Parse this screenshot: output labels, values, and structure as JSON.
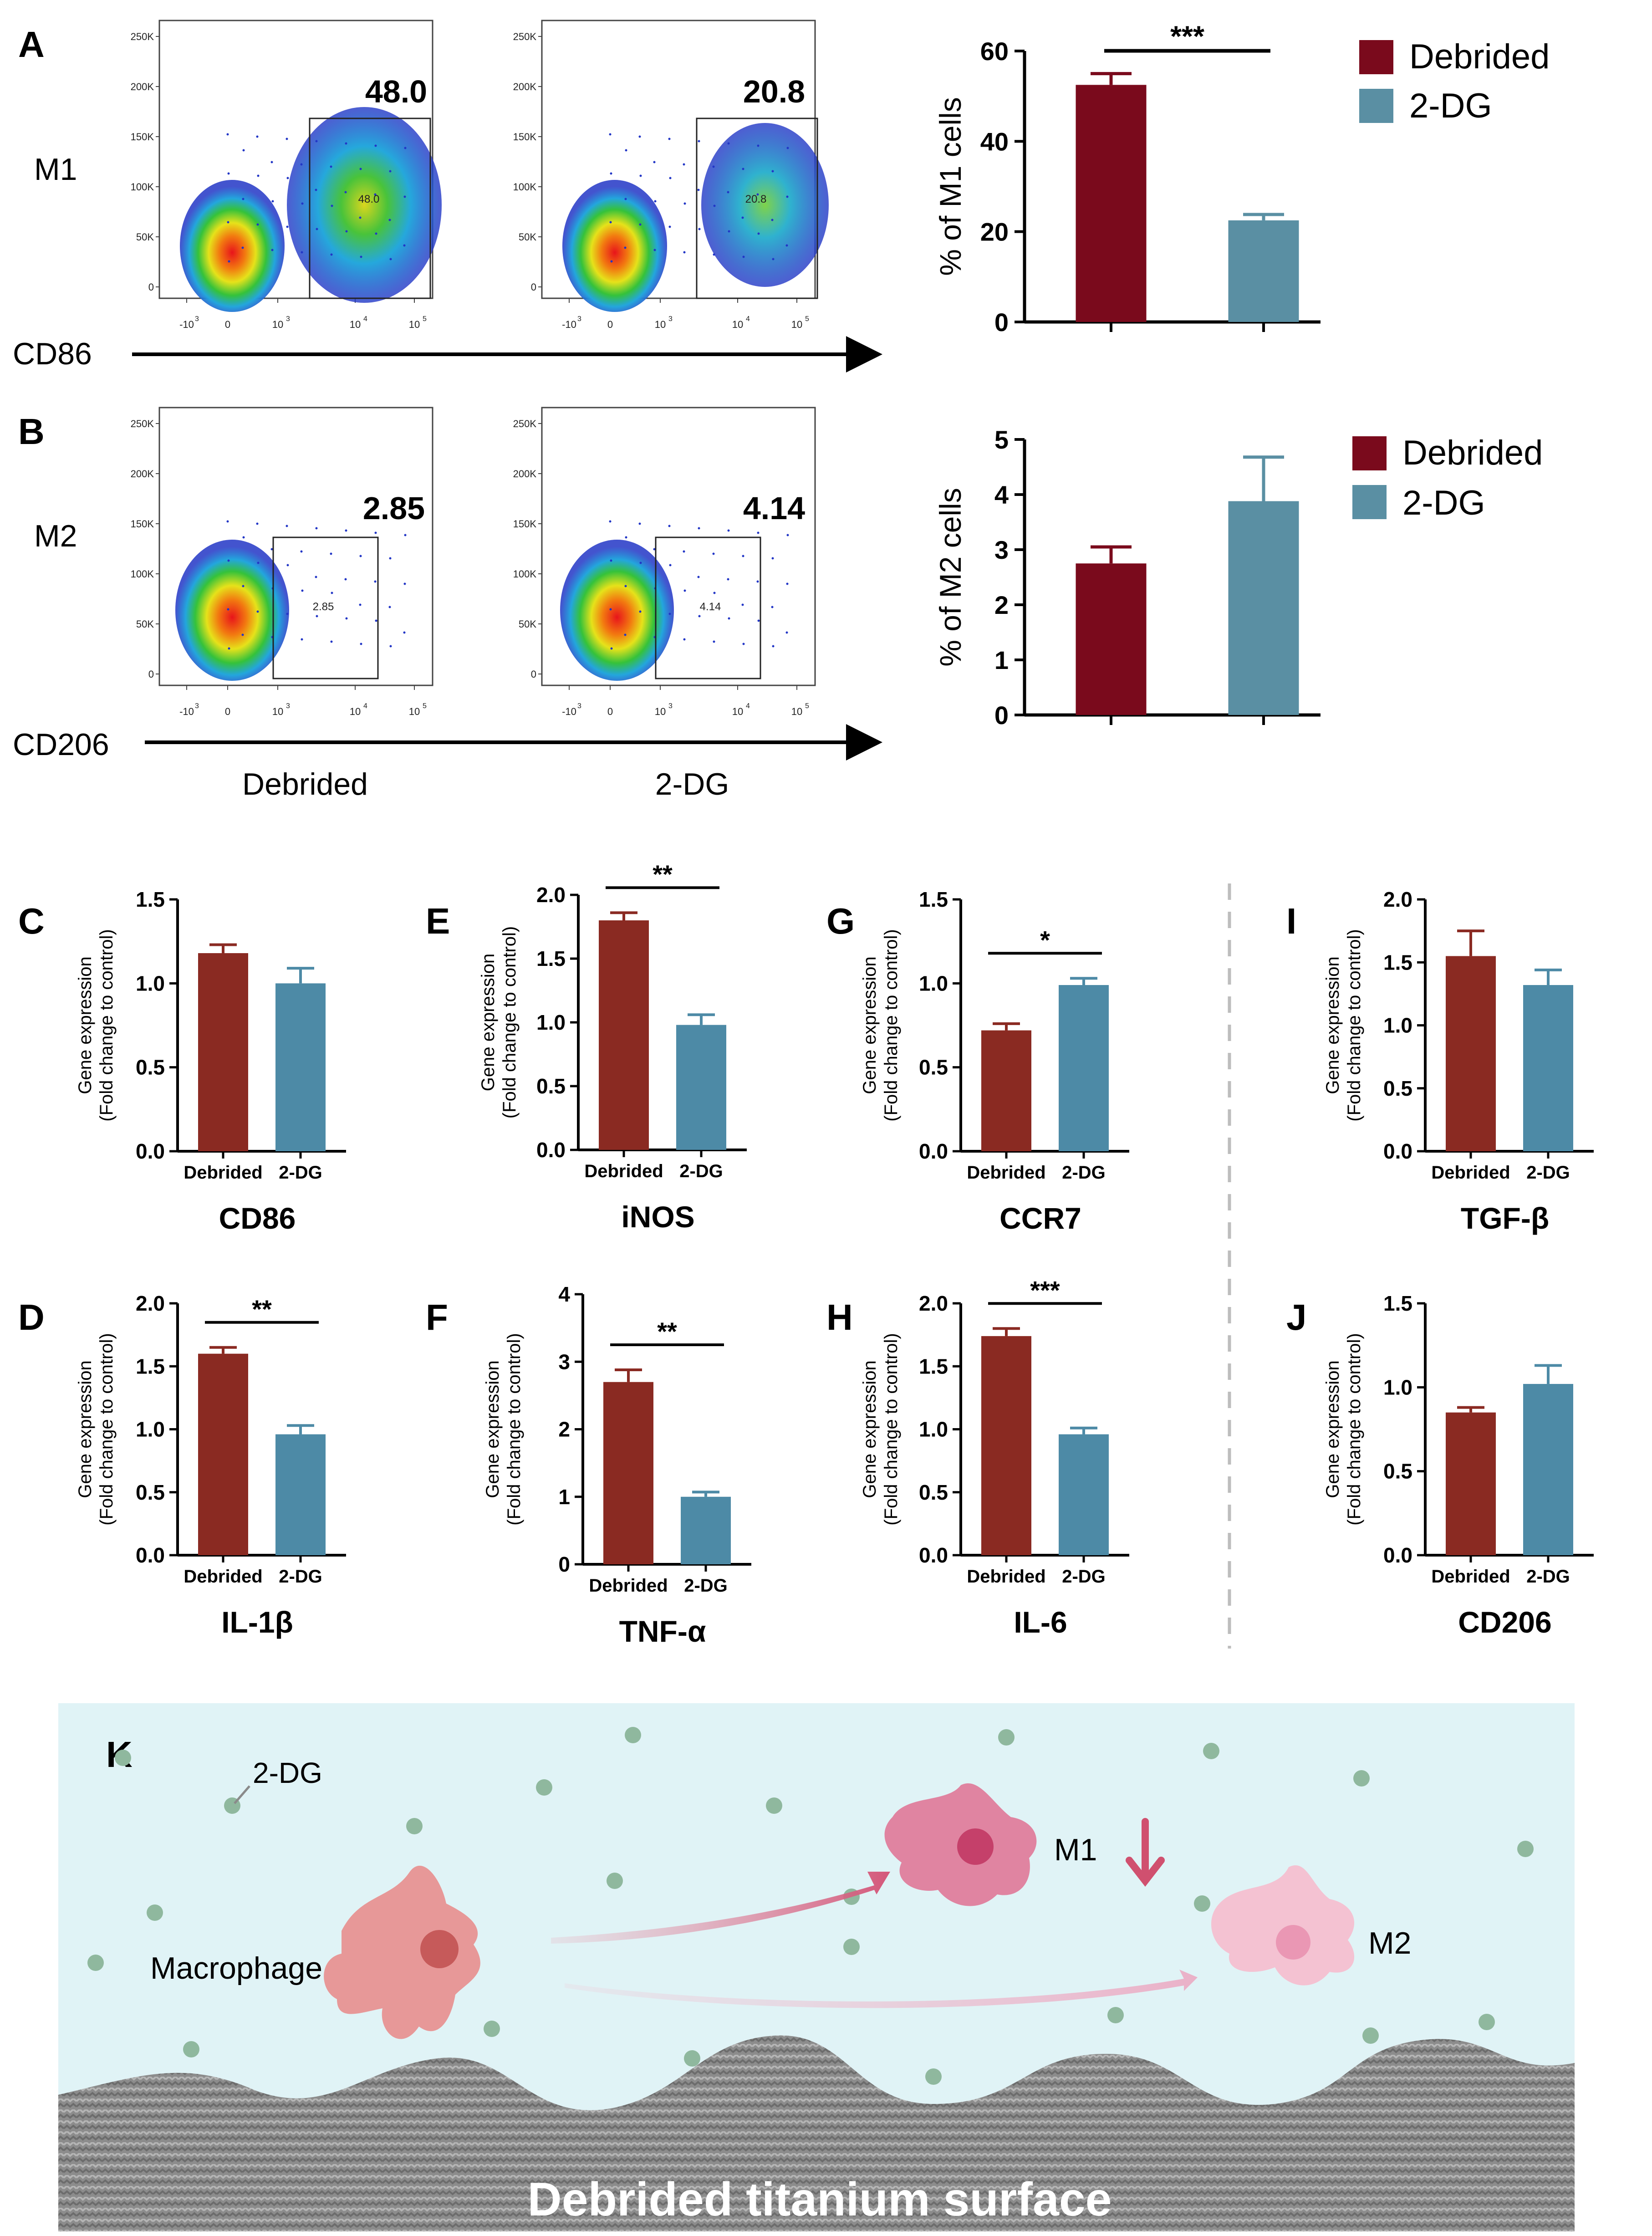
{
  "panel_letters": {
    "A": "A",
    "B": "B",
    "C": "C",
    "D": "D",
    "E": "E",
    "F": "F",
    "G": "G",
    "H": "H",
    "I": "I",
    "J": "J",
    "K": "K"
  },
  "colors": {
    "debrided": "#7a0a1c",
    "dg": "#5a8fa3",
    "debrided_qpcr": "#8a2a22",
    "dg_qpcr": "#4d8aa6",
    "scene_bg": "#e0f3f6"
  },
  "flow": {
    "row_labels": {
      "m1": "M1",
      "m2": "M2"
    },
    "axis_labels": {
      "m1": "CD86",
      "m2": "CD206"
    },
    "group_labels": {
      "debrided": "Debrided",
      "dg": "2-DG"
    },
    "y_ticks": [
      "250K",
      "200K",
      "150K",
      "100K",
      "50K",
      "0"
    ],
    "x_ticks": [
      "-10",
      "0",
      "10",
      "10",
      "10"
    ],
    "x_exps": [
      "3",
      "",
      "3",
      "4",
      "5"
    ],
    "plots": [
      {
        "id": "m1-debrided",
        "gate_value": "48.0",
        "gate_inner": "48.0"
      },
      {
        "id": "m1-2dg",
        "gate_value": "20.8",
        "gate_inner": "20.8"
      },
      {
        "id": "m2-debrided",
        "gate_value": "2.85",
        "gate_inner": "2.85"
      },
      {
        "id": "m2-2dg",
        "gate_value": "4.14",
        "gate_inner": "4.14"
      }
    ]
  },
  "chart_data": [
    {
      "panel": "A",
      "type": "bar",
      "categories": [
        "Debrided",
        "2-DG"
      ],
      "values": [
        52.5,
        22.5
      ],
      "errors": [
        2.5,
        1.3
      ],
      "ylabel": "% of M1 cells",
      "ylim": [
        0,
        60
      ],
      "yticks": [
        0,
        20,
        40,
        60
      ],
      "tick_labels": [
        "0",
        "20",
        "40",
        "60"
      ],
      "significance": "***",
      "legend": [
        "Debrided",
        "2-DG"
      ]
    },
    {
      "panel": "B",
      "type": "bar",
      "categories": [
        "Debrided",
        "2-DG"
      ],
      "values": [
        2.75,
        3.88
      ],
      "errors": [
        0.3,
        0.8
      ],
      "ylabel": "% of M2 cells",
      "ylim": [
        0,
        5
      ],
      "yticks": [
        0,
        1,
        2,
        3,
        4,
        5
      ],
      "tick_labels": [
        "0",
        "1",
        "2",
        "3",
        "4",
        "5"
      ],
      "significance": "",
      "legend": [
        "Debrided",
        "2-DG"
      ]
    },
    {
      "panel": "C",
      "type": "bar",
      "title": "CD86",
      "categories": [
        "Debrided",
        "2-DG"
      ],
      "values": [
        1.18,
        1.0
      ],
      "errors": [
        0.05,
        0.09
      ],
      "ylabel": "Gene expression",
      "ylabel2": "(Fold change to control)",
      "ylim": [
        0,
        1.5
      ],
      "yticks": [
        0,
        0.5,
        1.0,
        1.5
      ],
      "tick_labels": [
        "0.0",
        "0.5",
        "1.0",
        "1.5"
      ],
      "significance": ""
    },
    {
      "panel": "D",
      "type": "bar",
      "title": "IL-1β",
      "categories": [
        "Debrided",
        "2-DG"
      ],
      "values": [
        1.6,
        0.96
      ],
      "errors": [
        0.05,
        0.07
      ],
      "ylabel": "Gene expression",
      "ylabel2": "(Fold change to control)",
      "ylim": [
        0,
        2.0
      ],
      "yticks": [
        0,
        0.5,
        1.0,
        1.5,
        2.0
      ],
      "tick_labels": [
        "0.0",
        "0.5",
        "1.0",
        "1.5",
        "2.0"
      ],
      "significance": "**"
    },
    {
      "panel": "E",
      "type": "bar",
      "title": "iNOS",
      "categories": [
        "Debrided",
        "2-DG"
      ],
      "values": [
        1.8,
        0.98
      ],
      "errors": [
        0.06,
        0.08
      ],
      "ylabel": "Gene expression",
      "ylabel2": "(Fold change to control)",
      "ylim": [
        0,
        2.0
      ],
      "yticks": [
        0,
        0.5,
        1.0,
        1.5,
        2.0
      ],
      "tick_labels": [
        "0.0",
        "0.5",
        "1.0",
        "1.5",
        "2.0"
      ],
      "significance": "**"
    },
    {
      "panel": "F",
      "type": "bar",
      "title": "TNF-α",
      "categories": [
        "Debrided",
        "2-DG"
      ],
      "values": [
        2.7,
        1.0
      ],
      "errors": [
        0.18,
        0.07
      ],
      "ylabel": "Gene expression",
      "ylabel2": "(Fold change to control)",
      "ylim": [
        0,
        4
      ],
      "yticks": [
        0,
        1,
        2,
        3,
        4
      ],
      "tick_labels": [
        "0",
        "1",
        "2",
        "3",
        "4"
      ],
      "significance": "**"
    },
    {
      "panel": "G",
      "type": "bar",
      "title": "CCR7",
      "categories": [
        "Debrided",
        "2-DG"
      ],
      "values": [
        0.72,
        0.99
      ],
      "errors": [
        0.04,
        0.04
      ],
      "ylabel": "Gene expression",
      "ylabel2": "(Fold change to control)",
      "ylim": [
        0,
        1.5
      ],
      "yticks": [
        0,
        0.5,
        1.0,
        1.5
      ],
      "tick_labels": [
        "0.0",
        "0.5",
        "1.0",
        "1.5"
      ],
      "significance": "*"
    },
    {
      "panel": "H",
      "type": "bar",
      "title": "IL-6",
      "categories": [
        "Debrided",
        "2-DG"
      ],
      "values": [
        1.74,
        0.96
      ],
      "errors": [
        0.06,
        0.05
      ],
      "ylabel": "Gene expression",
      "ylabel2": "(Fold change to control)",
      "ylim": [
        0,
        2.0
      ],
      "yticks": [
        0,
        0.5,
        1.0,
        1.5,
        2.0
      ],
      "tick_labels": [
        "0.0",
        "0.5",
        "1.0",
        "1.5",
        "2.0"
      ],
      "significance": "***"
    },
    {
      "panel": "I",
      "type": "bar",
      "title": "TGF-β",
      "categories": [
        "Debrided",
        "2-DG"
      ],
      "values": [
        1.55,
        1.32
      ],
      "errors": [
        0.2,
        0.12
      ],
      "ylabel": "Gene expression",
      "ylabel2": "(Fold change to control)",
      "ylim": [
        0,
        2.0
      ],
      "yticks": [
        0,
        0.5,
        1.0,
        1.5,
        2.0
      ],
      "tick_labels": [
        "0.0",
        "0.5",
        "1.0",
        "1.5",
        "2.0"
      ],
      "significance": ""
    },
    {
      "panel": "J",
      "type": "bar",
      "title": "CD206",
      "categories": [
        "Debrided",
        "2-DG"
      ],
      "values": [
        0.85,
        1.02
      ],
      "errors": [
        0.03,
        0.11
      ],
      "ylabel": "Gene expression",
      "ylabel2": "(Fold change to control)",
      "ylim": [
        0,
        1.5
      ],
      "yticks": [
        0,
        0.5,
        1.0,
        1.5
      ],
      "tick_labels": [
        "0.0",
        "0.5",
        "1.0",
        "1.5"
      ],
      "significance": ""
    }
  ],
  "schematic": {
    "drug_label": "2-DG",
    "macrophage_label": "Macrophage",
    "m1_label": "M1",
    "m2_label": "M2",
    "surface_label": "Debrided titanium surface"
  }
}
